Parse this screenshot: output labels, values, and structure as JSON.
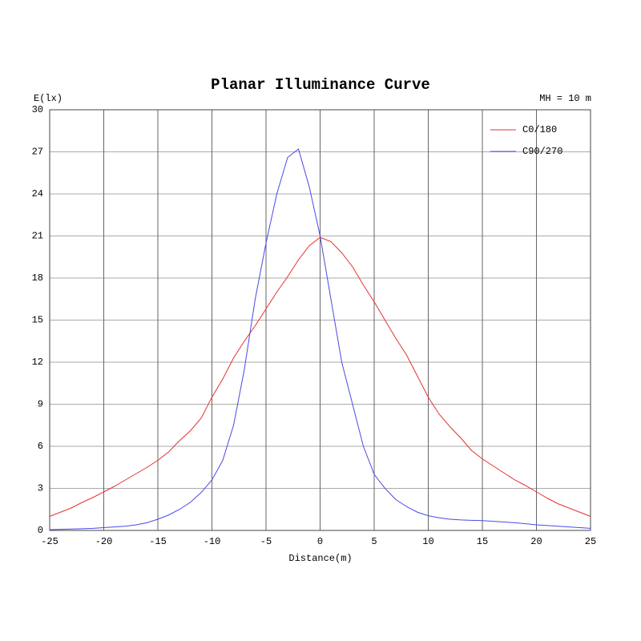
{
  "chart_data": {
    "type": "line",
    "title": "Planar Illuminance Curve",
    "y_label": "E(lx)",
    "x_label": "Distance(m)",
    "annotation": "MH = 10 m",
    "x": [
      -25,
      -24,
      -23,
      -22,
      -21,
      -20,
      -19,
      -18,
      -17,
      -16,
      -15,
      -14,
      -13,
      -12,
      -11,
      -10,
      -9,
      -8,
      -7,
      -6,
      -5,
      -4,
      -3,
      -2,
      -1,
      0,
      1,
      2,
      3,
      4,
      5,
      6,
      7,
      8,
      9,
      10,
      11,
      12,
      13,
      14,
      15,
      16,
      17,
      18,
      19,
      20,
      21,
      22,
      23,
      24,
      25
    ],
    "series": [
      {
        "name": "C0/180",
        "color": "#e83030",
        "values": [
          1.0,
          1.3,
          1.6,
          2.0,
          2.35,
          2.75,
          3.15,
          3.6,
          4.05,
          4.5,
          5.0,
          5.6,
          6.4,
          7.1,
          8.0,
          9.5,
          10.8,
          12.3,
          13.5,
          14.6,
          15.8,
          17.0,
          18.1,
          19.3,
          20.3,
          20.9,
          20.6,
          19.8,
          18.8,
          17.5,
          16.3,
          15.0,
          13.7,
          12.5,
          11.0,
          9.5,
          8.3,
          7.4,
          6.6,
          5.7,
          5.1,
          4.6,
          4.1,
          3.6,
          3.2,
          2.75,
          2.3,
          1.9,
          1.6,
          1.3,
          1.0
        ]
      },
      {
        "name": "C90/270",
        "color": "#4a4ae8",
        "values": [
          0.05,
          0.08,
          0.1,
          0.12,
          0.15,
          0.2,
          0.25,
          0.3,
          0.4,
          0.55,
          0.8,
          1.1,
          1.5,
          2.0,
          2.7,
          3.6,
          5.0,
          7.5,
          11.5,
          16.5,
          20.5,
          24.0,
          26.6,
          27.2,
          24.5,
          21.0,
          16.5,
          12.0,
          9.0,
          6.0,
          4.0,
          3.0,
          2.2,
          1.7,
          1.3,
          1.05,
          0.9,
          0.8,
          0.75,
          0.72,
          0.7,
          0.65,
          0.6,
          0.55,
          0.48,
          0.4,
          0.35,
          0.3,
          0.25,
          0.2,
          0.15
        ]
      }
    ],
    "xlim": [
      -25,
      25
    ],
    "xticks": [
      -25,
      -20,
      -15,
      -10,
      -5,
      0,
      5,
      10,
      15,
      20,
      25
    ],
    "ylim": [
      0,
      30
    ],
    "yticks": [
      0,
      3,
      6,
      9,
      12,
      15,
      18,
      21,
      24,
      27,
      30
    ],
    "grid": true,
    "legend": "upper right"
  }
}
